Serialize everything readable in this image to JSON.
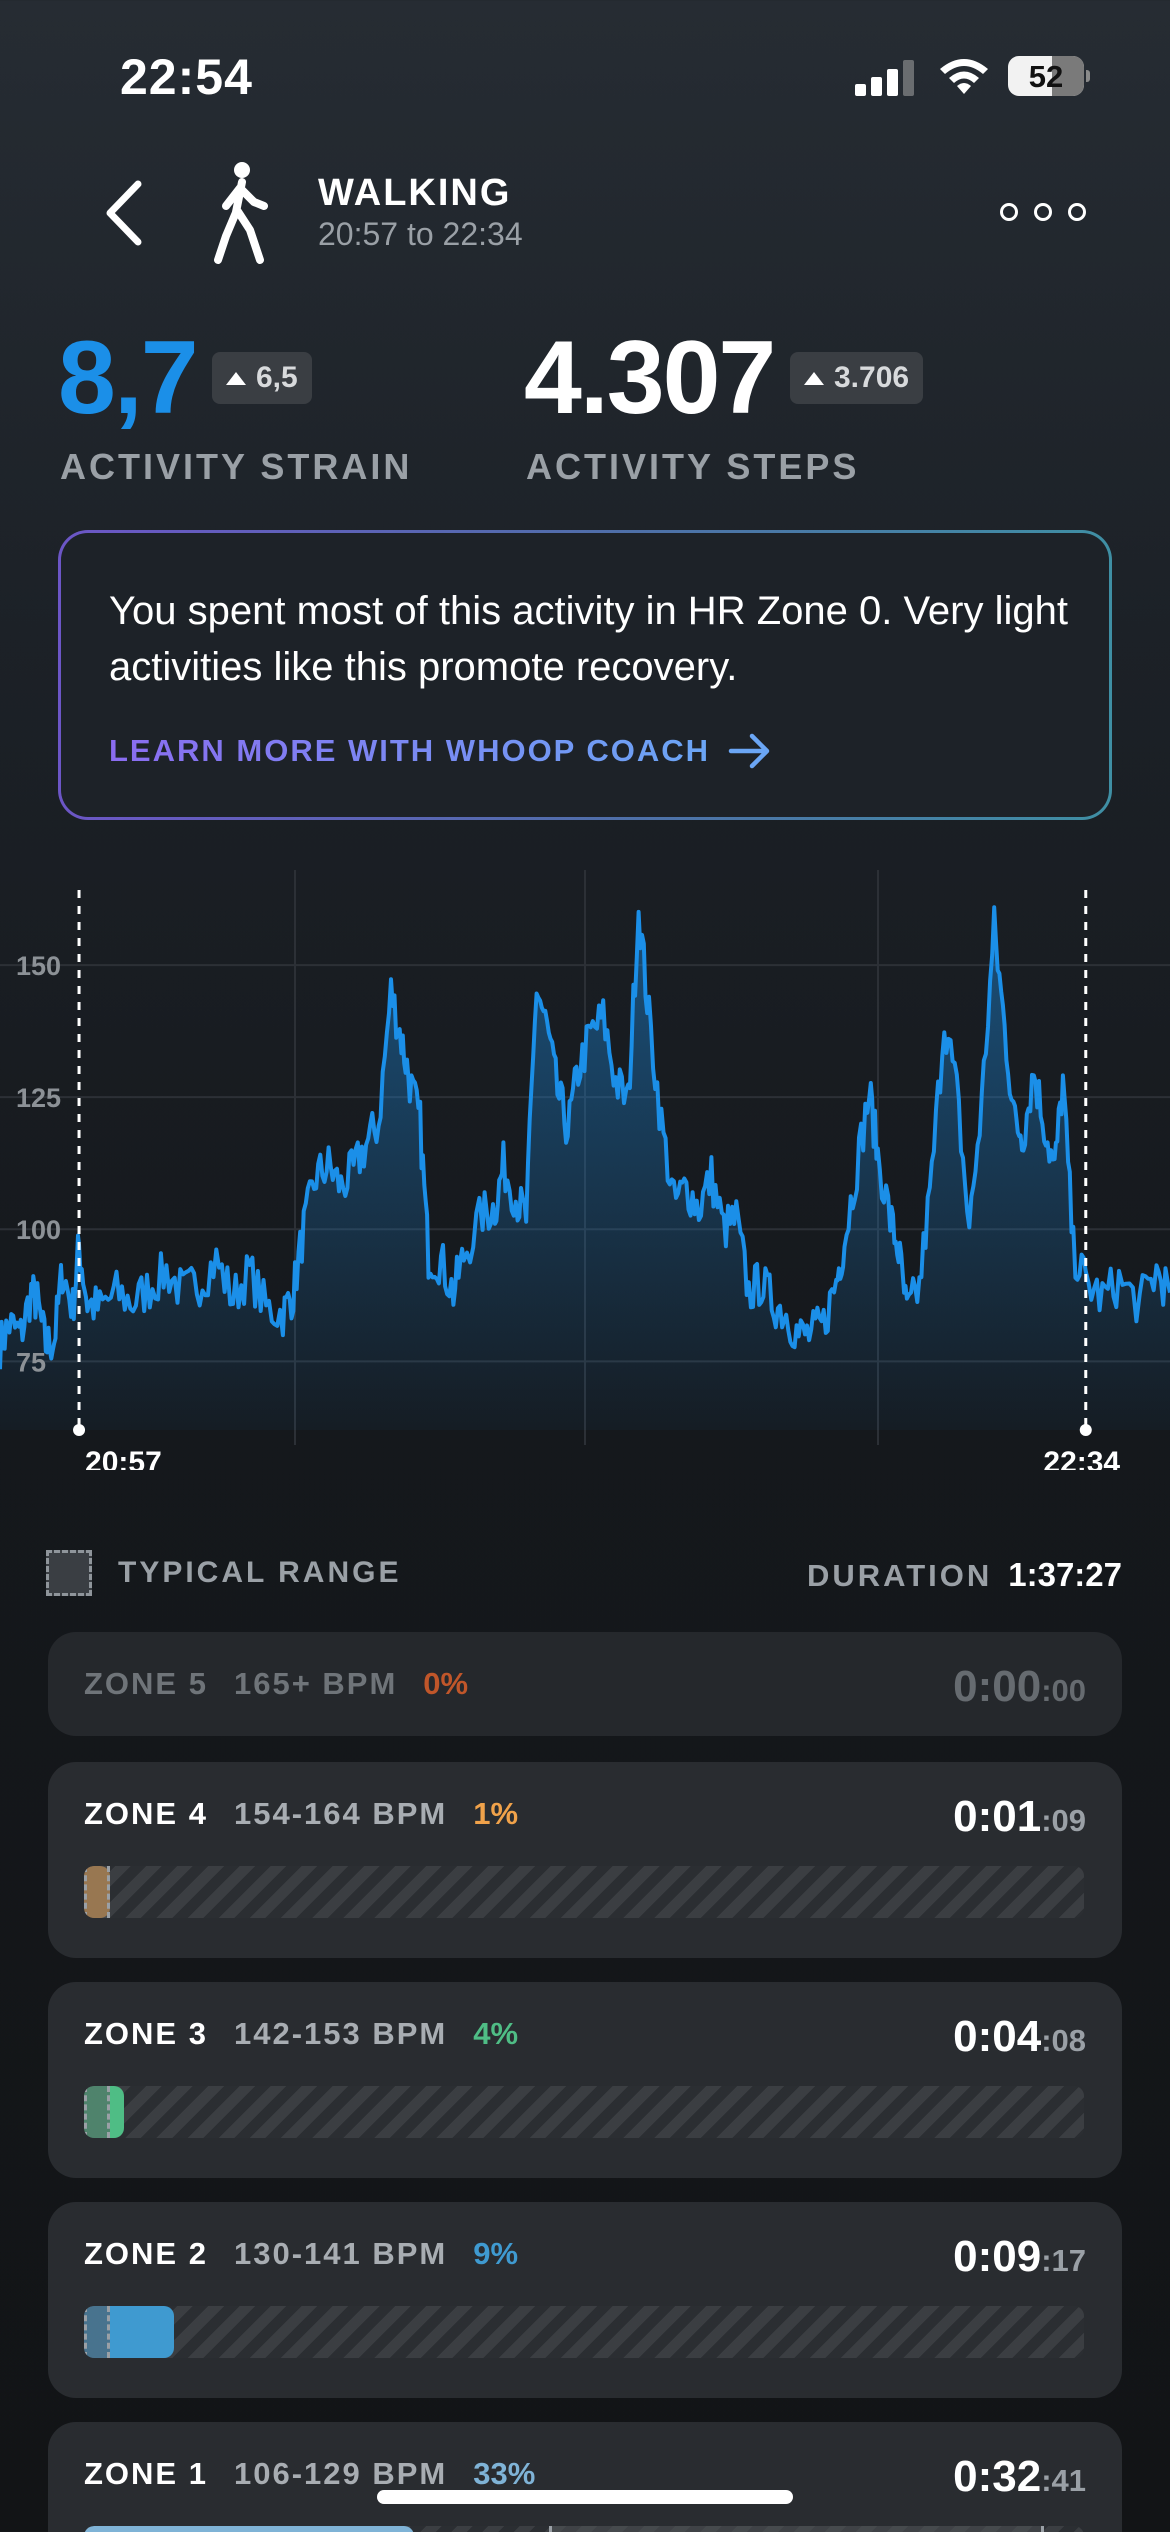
{
  "status_bar": {
    "time": "22:54",
    "battery": "52"
  },
  "header": {
    "activity": "WALKING",
    "time_range": "20:57 to 22:34"
  },
  "metrics": {
    "strain": {
      "value": "8,7",
      "delta": "6,5",
      "label": "ACTIVITY STRAIN",
      "color": "#1b8fe8"
    },
    "steps": {
      "value": "4.307",
      "delta": "3.706",
      "label": "ACTIVITY STEPS"
    }
  },
  "coach": {
    "text": "You spent most of this activity in HR Zone 0. Very light activities like this promote recovery.",
    "link_label": "LEARN MORE WITH WHOOP COACH"
  },
  "chart_data": {
    "type": "area",
    "y_ticks": [
      150,
      125,
      100,
      75
    ],
    "x_labels": [
      "20:57",
      "22:34"
    ],
    "ylim": [
      62,
      168
    ],
    "series_color": "#1b8fe8",
    "heart_rate_keypoints": [
      [
        0,
        78
      ],
      [
        0.9,
        82
      ],
      [
        2,
        80
      ],
      [
        3,
        88
      ],
      [
        3.6,
        86
      ],
      [
        4.4,
        78
      ],
      [
        5.2,
        79
      ],
      [
        6,
        92
      ],
      [
        7,
        85
      ],
      [
        7.6,
        97
      ],
      [
        8.4,
        86
      ],
      [
        9.6,
        85
      ],
      [
        11.2,
        88
      ],
      [
        12.8,
        86
      ],
      [
        14.4,
        89
      ],
      [
        16,
        92
      ],
      [
        17.6,
        88
      ],
      [
        19.2,
        90
      ],
      [
        20.8,
        94
      ],
      [
        22.4,
        87
      ],
      [
        24,
        92
      ],
      [
        25.6,
        85
      ],
      [
        27.2,
        84
      ],
      [
        28.2,
        88
      ],
      [
        29.2,
        100
      ],
      [
        30.4,
        110
      ],
      [
        31.6,
        112
      ],
      [
        32.8,
        108
      ],
      [
        34,
        111
      ],
      [
        35.2,
        116
      ],
      [
        36.4,
        120
      ],
      [
        37.6,
        145
      ],
      [
        38.6,
        136
      ],
      [
        39.4,
        128
      ],
      [
        40.4,
        120
      ],
      [
        41.2,
        95
      ],
      [
        42.4,
        94
      ],
      [
        43.6,
        88
      ],
      [
        44.6,
        95
      ],
      [
        46.4,
        103
      ],
      [
        47.6,
        104
      ],
      [
        48.4,
        112
      ],
      [
        49.6,
        106
      ],
      [
        50.6,
        102
      ],
      [
        51.6,
        146
      ],
      [
        52.6,
        138
      ],
      [
        53.6,
        126
      ],
      [
        54.6,
        119
      ],
      [
        55.6,
        130
      ],
      [
        56.8,
        137
      ],
      [
        58,
        140
      ],
      [
        59.2,
        128
      ],
      [
        60.4,
        124
      ],
      [
        61.4,
        161
      ],
      [
        62.4,
        140
      ],
      [
        63.6,
        120
      ],
      [
        64.8,
        105
      ],
      [
        66,
        108
      ],
      [
        67.2,
        104
      ],
      [
        68.4,
        110
      ],
      [
        69.6,
        100
      ],
      [
        70.8,
        102
      ],
      [
        72,
        88
      ],
      [
        73.2,
        90
      ],
      [
        74.4,
        86
      ],
      [
        75.6,
        84
      ],
      [
        76.8,
        80
      ],
      [
        78,
        80
      ],
      [
        79.2,
        82
      ],
      [
        80.4,
        90
      ],
      [
        81.2,
        98
      ],
      [
        82.4,
        112
      ],
      [
        83.6,
        126
      ],
      [
        84.4,
        114
      ],
      [
        85.6,
        102
      ],
      [
        86.4,
        96
      ],
      [
        87.2,
        84
      ],
      [
        88.4,
        89
      ],
      [
        89.6,
        110
      ],
      [
        90.8,
        140
      ],
      [
        92,
        126
      ],
      [
        93.2,
        100
      ],
      [
        94.4,
        124
      ],
      [
        95.6,
        157
      ],
      [
        96.6,
        138
      ],
      [
        97.6,
        120
      ],
      [
        98.4,
        118
      ],
      [
        99.4,
        130
      ],
      [
        100.4,
        120
      ],
      [
        101.4,
        111
      ],
      [
        102.2,
        128
      ],
      [
        103.2,
        96
      ],
      [
        104.4,
        90
      ],
      [
        106,
        87
      ],
      [
        107.6,
        90
      ],
      [
        109.6,
        86
      ],
      [
        111.2,
        92
      ],
      [
        112.5,
        88
      ]
    ],
    "activity_start_minute": 7.6,
    "activity_end_minute": 104.4
  },
  "typical_range": {
    "label": "TYPICAL RANGE"
  },
  "duration": {
    "label": "DURATION",
    "value": "1:37:27"
  },
  "zones": [
    {
      "name": "ZONE 5",
      "bpm": "165+ BPM",
      "pct": "0%",
      "pct_value": 0,
      "time_big": "0:00",
      "time_small": ":00",
      "color": "#c0562a",
      "dim": true
    },
    {
      "name": "ZONE 4",
      "bpm": "154-164 BPM",
      "pct": "1%",
      "pct_value": 1,
      "time_big": "0:01",
      "time_small": ":09",
      "color": "#f0a24a"
    },
    {
      "name": "ZONE 3",
      "bpm": "142-153 BPM",
      "pct": "4%",
      "pct_value": 4,
      "time_big": "0:04",
      "time_small": ":08",
      "color": "#4fbd85"
    },
    {
      "name": "ZONE 2",
      "bpm": "130-141 BPM",
      "pct": "9%",
      "pct_value": 9,
      "time_big": "0:09",
      "time_small": ":17",
      "color": "#3f9ad0"
    },
    {
      "name": "ZONE 1",
      "bpm": "106-129 BPM",
      "pct": "33%",
      "pct_value": 33,
      "time_big": "0:32",
      "time_small": ":41",
      "color": "#7fb3d6"
    }
  ]
}
